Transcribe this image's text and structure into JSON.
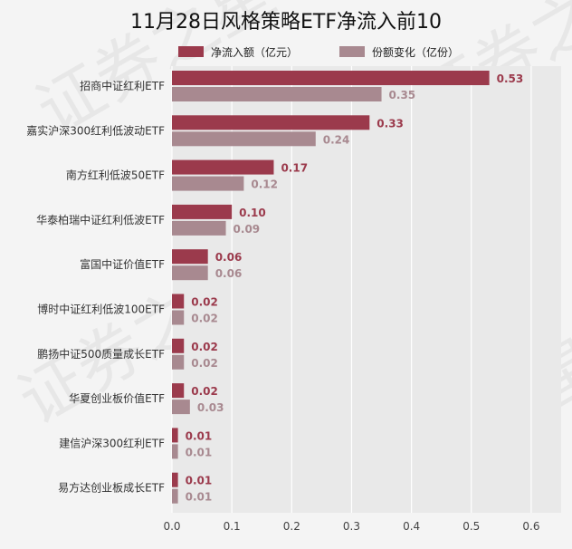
{
  "chart_data": {
    "type": "bar",
    "orientation": "horizontal",
    "title": "11月28日风格策略ETF净流入前10",
    "categories": [
      "招商中证红利ETF",
      "嘉实沪深300红利低波动ETF",
      "南方红利低波50ETF",
      "华泰柏瑞中证红利低波ETF",
      "富国中证价值ETF",
      "博时中证红利低波100ETF",
      "鹏扬中证500质量成长ETF",
      "华夏创业板价值ETF",
      "建信沪深300红利ETF",
      "易方达创业板成长ETF"
    ],
    "series": [
      {
        "name": "净流入额（亿元）",
        "color": "#9b3a4c",
        "values": [
          0.53,
          0.33,
          0.17,
          0.1,
          0.06,
          0.02,
          0.02,
          0.02,
          0.01,
          0.01
        ],
        "labels": [
          "0.53",
          "0.33",
          "0.17",
          "0.10",
          "0.06",
          "0.02",
          "0.02",
          "0.02",
          "0.01",
          "0.01"
        ]
      },
      {
        "name": "份额变化（亿份）",
        "color": "#a88990",
        "values": [
          0.35,
          0.24,
          0.12,
          0.09,
          0.06,
          0.02,
          0.02,
          0.03,
          0.01,
          0.01
        ],
        "labels": [
          "0.35",
          "0.24",
          "0.12",
          "0.09",
          "0.06",
          "0.02",
          "0.02",
          "0.03",
          "0.01",
          "0.01"
        ]
      }
    ],
    "xlim": [
      0,
      0.65
    ],
    "xticks": [
      "0.0",
      "0.1",
      "0.2",
      "0.3",
      "0.4",
      "0.5",
      "0.6"
    ],
    "xlabel": "",
    "ylabel": "",
    "grid": true,
    "legend_position": "top"
  },
  "watermark": "证券之星"
}
